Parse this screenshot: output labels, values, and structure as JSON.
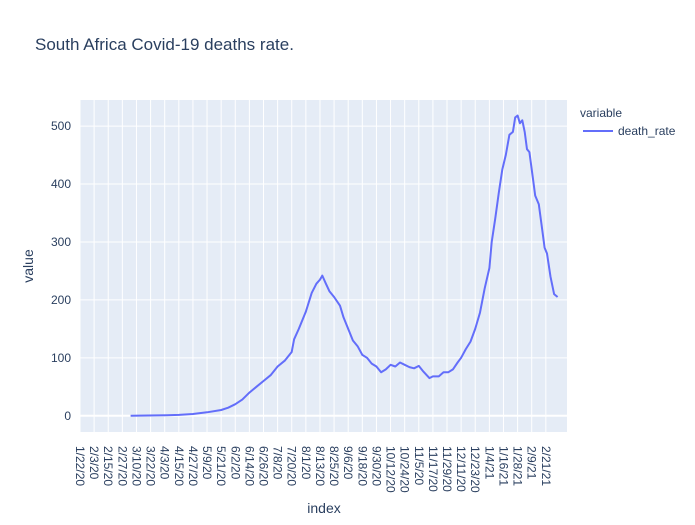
{
  "chart_data": {
    "type": "line",
    "title": "South Africa Covid-19 deaths rate.",
    "xlabel": "index",
    "ylabel": "value",
    "ylim": [
      -28,
      545
    ],
    "yticks": [
      0,
      100,
      200,
      300,
      400,
      500
    ],
    "x_range": [
      "2020-01-22",
      "2021-03-11"
    ],
    "x_tick_labels": [
      "1/22/20",
      "2/3/20",
      "2/15/20",
      "2/27/20",
      "3/10/20",
      "3/22/20",
      "4/3/20",
      "4/15/20",
      "4/27/20",
      "5/9/20",
      "5/21/20",
      "6/2/20",
      "6/14/20",
      "6/26/20",
      "7/8/20",
      "7/20/20",
      "8/1/20",
      "8/13/20",
      "8/25/20",
      "9/6/20",
      "9/18/20",
      "9/30/20",
      "10/12/20",
      "10/24/20",
      "11/5/20",
      "11/17/20",
      "11/29/20",
      "12/11/20",
      "12/23/20",
      "1/4/21",
      "1/16/21",
      "1/28/21",
      "2/9/21",
      "2/21/21"
    ],
    "grid": true,
    "background_color": "#e5ecf6",
    "legend": {
      "title": "variable",
      "placement": "right"
    },
    "series": [
      {
        "name": "death_rate",
        "color": "#636efa",
        "points": [
          [
            "2020-03-05",
            0
          ],
          [
            "2020-03-20",
            0.5
          ],
          [
            "2020-04-05",
            1
          ],
          [
            "2020-04-15",
            1.5
          ],
          [
            "2020-04-27",
            3
          ],
          [
            "2020-05-09",
            6
          ],
          [
            "2020-05-21",
            10
          ],
          [
            "2020-05-27",
            14
          ],
          [
            "2020-06-02",
            20
          ],
          [
            "2020-06-08",
            28
          ],
          [
            "2020-06-14",
            40
          ],
          [
            "2020-06-20",
            50
          ],
          [
            "2020-06-26",
            60
          ],
          [
            "2020-07-02",
            70
          ],
          [
            "2020-07-08",
            85
          ],
          [
            "2020-07-14",
            95
          ],
          [
            "2020-07-20",
            110
          ],
          [
            "2020-07-22",
            132
          ],
          [
            "2020-07-26",
            150
          ],
          [
            "2020-08-01",
            180
          ],
          [
            "2020-08-06",
            212
          ],
          [
            "2020-08-10",
            228
          ],
          [
            "2020-08-13",
            235
          ],
          [
            "2020-08-15",
            242
          ],
          [
            "2020-08-18",
            228
          ],
          [
            "2020-08-21",
            215
          ],
          [
            "2020-08-25",
            205
          ],
          [
            "2020-08-30",
            190
          ],
          [
            "2020-09-02",
            170
          ],
          [
            "2020-09-06",
            150
          ],
          [
            "2020-09-10",
            130
          ],
          [
            "2020-09-14",
            120
          ],
          [
            "2020-09-18",
            105
          ],
          [
            "2020-09-22",
            100
          ],
          [
            "2020-09-26",
            90
          ],
          [
            "2020-09-30",
            85
          ],
          [
            "2020-10-04",
            75
          ],
          [
            "2020-10-08",
            80
          ],
          [
            "2020-10-12",
            88
          ],
          [
            "2020-10-16",
            85
          ],
          [
            "2020-10-20",
            92
          ],
          [
            "2020-10-24",
            88
          ],
          [
            "2020-10-28",
            84
          ],
          [
            "2020-11-01",
            82
          ],
          [
            "2020-11-05",
            86
          ],
          [
            "2020-11-09",
            76
          ],
          [
            "2020-11-14",
            65
          ],
          [
            "2020-11-17",
            68
          ],
          [
            "2020-11-22",
            68
          ],
          [
            "2020-11-26",
            75
          ],
          [
            "2020-11-30",
            75
          ],
          [
            "2020-12-04",
            80
          ],
          [
            "2020-12-08",
            92
          ],
          [
            "2020-12-11",
            100
          ],
          [
            "2020-12-15",
            115
          ],
          [
            "2020-12-19",
            128
          ],
          [
            "2020-12-23",
            150
          ],
          [
            "2020-12-27",
            178
          ],
          [
            "2020-12-31",
            220
          ],
          [
            "2021-01-04",
            255
          ],
          [
            "2021-01-06",
            300
          ],
          [
            "2021-01-09",
            340
          ],
          [
            "2021-01-12",
            385
          ],
          [
            "2021-01-15",
            425
          ],
          [
            "2021-01-18",
            450
          ],
          [
            "2021-01-21",
            485
          ],
          [
            "2021-01-24",
            490
          ],
          [
            "2021-01-26",
            515
          ],
          [
            "2021-01-28",
            518
          ],
          [
            "2021-01-30",
            505
          ],
          [
            "2021-02-01",
            510
          ],
          [
            "2021-02-03",
            490
          ],
          [
            "2021-02-05",
            460
          ],
          [
            "2021-02-07",
            455
          ],
          [
            "2021-02-10",
            410
          ],
          [
            "2021-02-12",
            380
          ],
          [
            "2021-02-15",
            365
          ],
          [
            "2021-02-18",
            320
          ],
          [
            "2021-02-20",
            290
          ],
          [
            "2021-02-22",
            280
          ],
          [
            "2021-02-25",
            240
          ],
          [
            "2021-02-28",
            210
          ],
          [
            "2021-03-03",
            205
          ]
        ]
      }
    ]
  }
}
